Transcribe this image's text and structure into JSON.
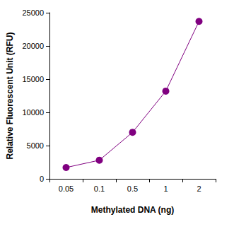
{
  "chart_data": {
    "type": "line",
    "xlabel": "Methylated DNA (ng)",
    "ylabel": "Relative Fluorescent Unit (RFU)",
    "categories": [
      "0.05",
      "0.1",
      "0.5",
      "1",
      "2"
    ],
    "values": [
      1700,
      2800,
      7000,
      13200,
      23700
    ],
    "color": "#800080",
    "marker": "circle",
    "line_style": "solid",
    "ylim": [
      0,
      25000
    ],
    "yticks": [
      0,
      5000,
      10000,
      15000,
      20000,
      25000
    ],
    "grid": false
  }
}
